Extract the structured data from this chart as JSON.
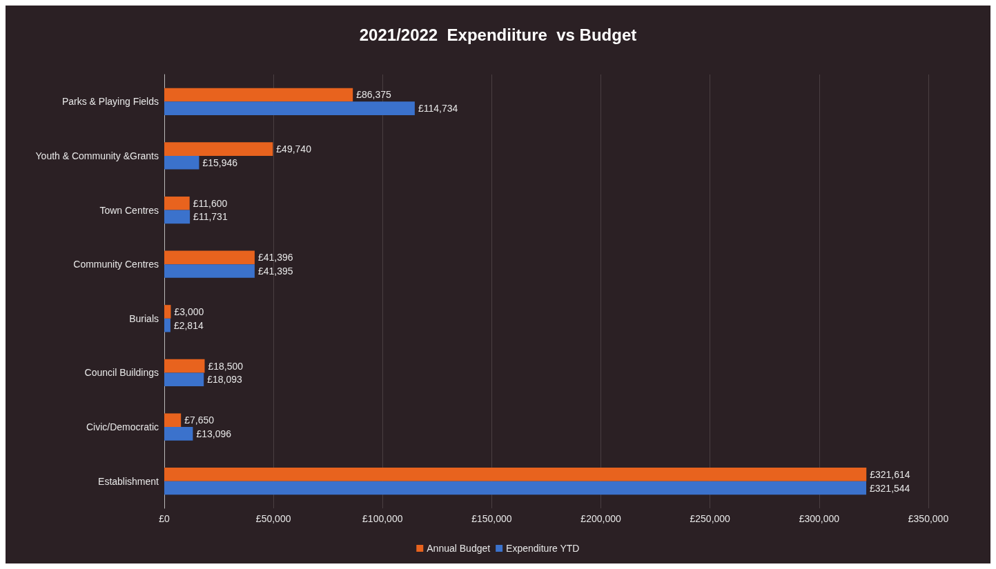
{
  "chart_data": {
    "type": "bar",
    "orientation": "horizontal",
    "title": "2021/2022  Expendiiture  vs Budget",
    "categories": [
      "Parks & Playing Fields",
      "Youth & Community &Grants",
      "Town Centres",
      "Community Centres",
      "Burials",
      "Council Buildings",
      "Civic/Democratic",
      "Establishment"
    ],
    "series": [
      {
        "name": "Annual Budget",
        "color": "#e8631e",
        "values": [
          86375,
          49740,
          11600,
          41396,
          3000,
          18500,
          7650,
          321614
        ],
        "value_labels": [
          "£86,375",
          "£49,740",
          "£11,600",
          "£41,396",
          "£3,000",
          "£18,500",
          "£7,650",
          "£321,614"
        ]
      },
      {
        "name": "Expenditure YTD",
        "color": "#3b72cc",
        "values": [
          114734,
          15946,
          11731,
          41395,
          2814,
          18093,
          13096,
          321544
        ],
        "value_labels": [
          "£114,734",
          "£15,946",
          "£11,731",
          "£41,395",
          "£2,814",
          "£18,093",
          "£13,096",
          "£321,544"
        ]
      }
    ],
    "xlim": [
      0,
      350000
    ],
    "xticks": [
      {
        "value": 0,
        "label": "£0"
      },
      {
        "value": 50000,
        "label": "£50,000"
      },
      {
        "value": 100000,
        "label": "£100,000"
      },
      {
        "value": 150000,
        "label": "£150,000"
      },
      {
        "value": 200000,
        "label": "£200,000"
      },
      {
        "value": 250000,
        "label": "£250,000"
      },
      {
        "value": 300000,
        "label": "£300,000"
      },
      {
        "value": 350000,
        "label": "£350,000"
      }
    ],
    "grid": "x",
    "legend": "bottom"
  }
}
